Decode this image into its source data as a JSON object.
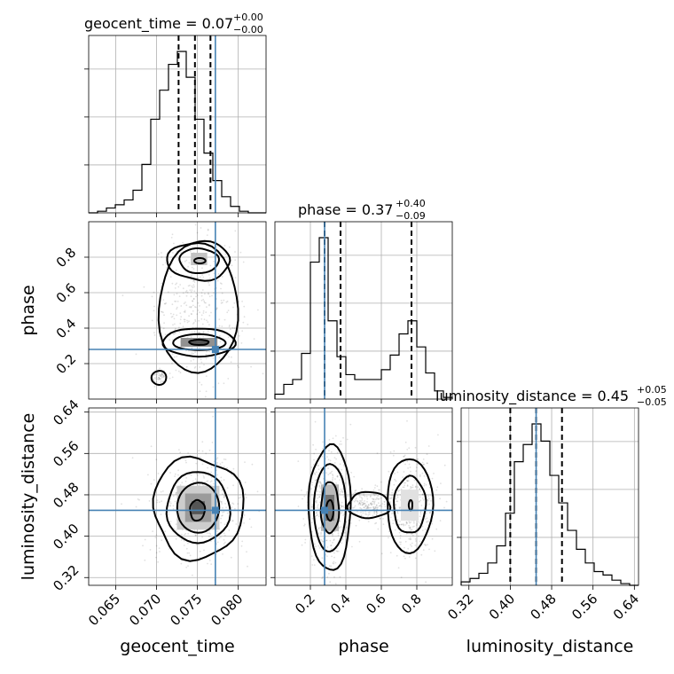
{
  "figure": {
    "background": "#ffffff",
    "truth_color": "#4682b4"
  },
  "chart_data": {
    "type": "corner",
    "parameters": [
      "geocent_time",
      "phase",
      "luminosity_distance"
    ],
    "truths": {
      "geocent_time": 0.0772,
      "phase": 0.28,
      "luminosity_distance": 0.45
    },
    "titles": {
      "geocent_time": {
        "text": "geocent_time = 0.07",
        "plus": "+0.00",
        "minus": "−0.00"
      },
      "phase": {
        "text": "phase = 0.37",
        "plus": "+0.40",
        "minus": "−0.09"
      },
      "luminosity_distance": {
        "text": "luminosity_distance = 0.45",
        "plus": "+0.05",
        "minus": "−0.05"
      }
    },
    "axis_labels": {
      "geocent_time": "geocent_time",
      "phase": "phase",
      "luminosity_distance": "luminosity_distance"
    },
    "ranges": {
      "geocent_time": [
        0.0617,
        0.0834
      ],
      "phase": [
        0.0,
        1.0
      ],
      "luminosity_distance": [
        0.305,
        0.648
      ]
    },
    "ticks": {
      "geocent_time": [
        0.065,
        0.07,
        0.075,
        0.08
      ],
      "phase": [
        0.2,
        0.4,
        0.6,
        0.8
      ],
      "luminosity_distance": [
        0.32,
        0.4,
        0.48,
        0.56,
        0.64
      ]
    },
    "tick_labels": {
      "geocent_time": [
        "0.065",
        "0.070",
        "0.075",
        "0.080"
      ],
      "phase": [
        "0.2",
        "0.4",
        "0.6",
        "0.8"
      ],
      "luminosity_distance": [
        "0.32",
        "0.40",
        "0.48",
        "0.56",
        "0.64"
      ]
    },
    "marginals": {
      "geocent_time": {
        "bins": 20,
        "counts": [
          0,
          1,
          3,
          5,
          8,
          14,
          30,
          58,
          76,
          92,
          100,
          84,
          58,
          37,
          20,
          10,
          4,
          1,
          0,
          0
        ],
        "quantiles": [
          0.0727,
          0.0747,
          0.0766
        ]
      },
      "phase": {
        "bins": 20,
        "counts": [
          3,
          9,
          12,
          28,
          84,
          99,
          48,
          26,
          15,
          12,
          12,
          12,
          18,
          27,
          40,
          48,
          32,
          16,
          5,
          1
        ],
        "quantiles": [
          0.28,
          0.37,
          0.77
        ]
      },
      "luminosity_distance": {
        "bins": 20,
        "counts": [
          2,
          4,
          7,
          13,
          23,
          42,
          72,
          82,
          94,
          84,
          64,
          48,
          32,
          21,
          13,
          8,
          6,
          3,
          1,
          0
        ],
        "quantiles": [
          0.4,
          0.45,
          0.5
        ]
      }
    },
    "pairs": [
      {
        "x": "geocent_time",
        "y": "phase",
        "density_cells": [
          {
            "x": 0.0752,
            "y": 0.79,
            "w": 0.002,
            "h": 0.07,
            "shade": 0.3
          },
          {
            "x": 0.0752,
            "y": 0.32,
            "w": 0.0045,
            "h": 0.05,
            "shade": 0.55
          },
          {
            "x": 0.0752,
            "y": 0.32,
            "w": 0.002,
            "h": 0.03,
            "shade": 0.85
          }
        ],
        "contours": [
          {
            "level": "0.5",
            "blobs": [
              {
                "cx": 0.0753,
                "cy": 0.78,
                "rx": 0.0007,
                "ry": 0.015
              },
              {
                "cx": 0.0752,
                "cy": 0.32,
                "rx": 0.0012,
                "ry": 0.015
              }
            ]
          },
          {
            "level": "1",
            "blobs": [
              {
                "cx": 0.0752,
                "cy": 0.78,
                "rx": 0.0024,
                "ry": 0.07
              },
              {
                "cx": 0.0752,
                "cy": 0.32,
                "rx": 0.0032,
                "ry": 0.045
              }
            ]
          },
          {
            "level": "1.5",
            "blobs": [
              {
                "cx": 0.0752,
                "cy": 0.78,
                "rx": 0.0038,
                "ry": 0.11
              },
              {
                "cx": 0.0752,
                "cy": 0.32,
                "rx": 0.0044,
                "ry": 0.08
              }
            ]
          },
          {
            "level": "2",
            "blobs": [
              {
                "cx": 0.0751,
                "cy": 0.51,
                "rx": 0.0048,
                "ry": 0.37
              },
              {
                "cx": 0.0703,
                "cy": 0.12,
                "rx": 0.0009,
                "ry": 0.04
              }
            ]
          }
        ]
      },
      {
        "x": "geocent_time",
        "y": "luminosity_distance",
        "density_cells": [
          {
            "x": 0.0751,
            "y": 0.455,
            "w": 0.0052,
            "h": 0.085,
            "shade": 0.25
          },
          {
            "x": 0.0751,
            "y": 0.455,
            "w": 0.0032,
            "h": 0.055,
            "shade": 0.5
          },
          {
            "x": 0.0751,
            "y": 0.455,
            "w": 0.0016,
            "h": 0.025,
            "shade": 0.85
          }
        ],
        "contours": [
          {
            "level": "0.5",
            "blobs": [
              {
                "cx": 0.075,
                "cy": 0.45,
                "rx": 0.0009,
                "ry": 0.02
              }
            ]
          },
          {
            "level": "1",
            "blobs": [
              {
                "cx": 0.0751,
                "cy": 0.455,
                "rx": 0.0026,
                "ry": 0.048
              }
            ]
          },
          {
            "level": "1.5",
            "blobs": [
              {
                "cx": 0.0751,
                "cy": 0.455,
                "rx": 0.0039,
                "ry": 0.068
              }
            ]
          },
          {
            "level": "2",
            "blobs": [
              {
                "cx": 0.0751,
                "cy": 0.455,
                "rx": 0.0055,
                "ry": 0.098
              }
            ]
          }
        ]
      },
      {
        "x": "phase",
        "y": "luminosity_distance",
        "density_cells": [
          {
            "x": 0.31,
            "y": 0.455,
            "w": 0.1,
            "h": 0.09,
            "shade": 0.35
          },
          {
            "x": 0.31,
            "y": 0.455,
            "w": 0.05,
            "h": 0.05,
            "shade": 0.7
          },
          {
            "x": 0.76,
            "y": 0.46,
            "w": 0.1,
            "h": 0.06,
            "shade": 0.15
          }
        ],
        "contours": [
          {
            "level": "0.5",
            "blobs": [
              {
                "cx": 0.31,
                "cy": 0.45,
                "rx": 0.02,
                "ry": 0.02
              }
            ]
          },
          {
            "level": "1",
            "blobs": [
              {
                "cx": 0.31,
                "cy": 0.455,
                "rx": 0.05,
                "ry": 0.05
              },
              {
                "cx": 0.765,
                "cy": 0.46,
                "rx": 0.01,
                "ry": 0.01
              }
            ]
          },
          {
            "level": "1.5",
            "blobs": [
              {
                "cx": 0.31,
                "cy": 0.455,
                "rx": 0.09,
                "ry": 0.085
              },
              {
                "cx": 0.76,
                "cy": 0.46,
                "rx": 0.09,
                "ry": 0.055
              }
            ]
          },
          {
            "level": "2",
            "blobs": [
              {
                "cx": 0.31,
                "cy": 0.455,
                "rx": 0.12,
                "ry": 0.12
              },
              {
                "cx": 0.76,
                "cy": 0.46,
                "rx": 0.13,
                "ry": 0.09
              },
              {
                "cx": 0.53,
                "cy": 0.46,
                "rx": 0.12,
                "ry": 0.025
              }
            ]
          }
        ]
      }
    ],
    "grid": true
  }
}
